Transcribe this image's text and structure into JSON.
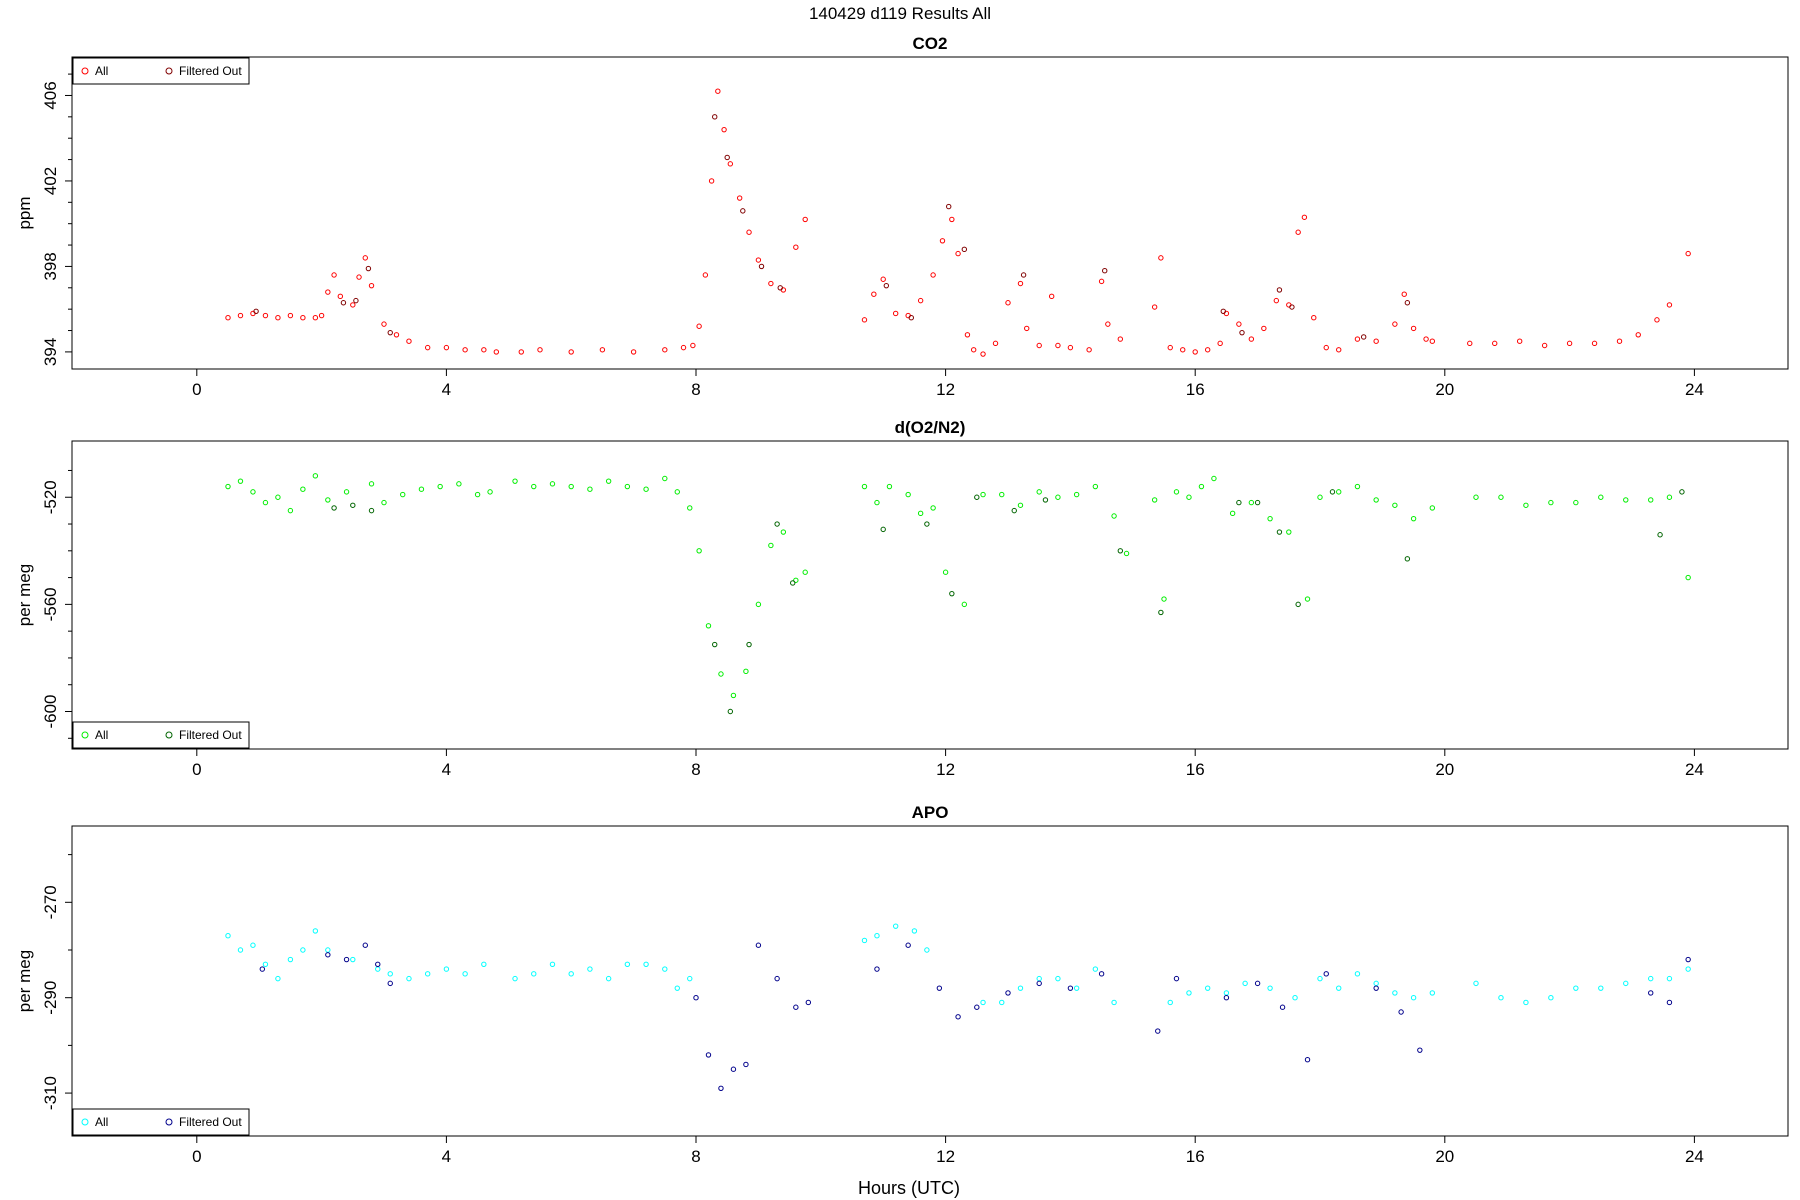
{
  "figure": {
    "title": "140429   d119   Results All",
    "xlabel": "Hours (UTC)"
  },
  "chart_data": [
    {
      "type": "scatter",
      "title": "CO2",
      "ylabel": "ppm",
      "xlim": [
        -2.0,
        25.5
      ],
      "ylim": [
        393.2,
        407.8
      ],
      "xticks": [
        0,
        4,
        8,
        12,
        16,
        20,
        24
      ],
      "yticks": [
        394,
        398,
        402,
        406
      ],
      "yminor": [
        395,
        396,
        397,
        399,
        400,
        401,
        403,
        404,
        405,
        407
      ],
      "legend": {
        "placement": "top-left",
        "entries": [
          "All",
          "Filtered Out"
        ]
      },
      "series": [
        {
          "name": "All",
          "color": "#ff0000",
          "x": [
            0.5,
            0.7,
            0.9,
            1.1,
            1.3,
            1.5,
            1.7,
            1.9,
            2.0,
            2.1,
            2.2,
            2.3,
            2.5,
            2.6,
            2.7,
            2.8,
            3.0,
            3.2,
            3.4,
            3.7,
            4.0,
            4.3,
            4.6,
            4.8,
            5.2,
            5.5,
            6.0,
            6.5,
            7.0,
            7.5,
            7.8,
            7.95,
            8.05,
            8.15,
            8.25,
            8.35,
            8.45,
            8.55,
            8.7,
            8.85,
            9.0,
            9.2,
            9.4,
            9.6,
            9.75,
            10.7,
            10.85,
            11.0,
            11.2,
            11.4,
            11.6,
            11.8,
            11.95,
            12.1,
            12.2,
            12.35,
            12.45,
            12.6,
            12.8,
            13.0,
            13.2,
            13.3,
            13.5,
            13.7,
            13.8,
            14.0,
            14.3,
            14.5,
            14.6,
            14.8,
            15.35,
            15.45,
            15.6,
            15.8,
            16.0,
            16.2,
            16.4,
            16.5,
            16.7,
            16.9,
            17.1,
            17.3,
            17.5,
            17.65,
            17.75,
            17.9,
            18.1,
            18.3,
            18.6,
            18.9,
            19.2,
            19.35,
            19.5,
            19.7,
            19.8,
            20.4,
            20.8,
            21.2,
            21.6,
            22.0,
            22.4,
            22.8,
            23.1,
            23.4,
            23.6,
            23.9
          ],
          "y": [
            395.6,
            395.7,
            395.8,
            395.7,
            395.6,
            395.7,
            395.6,
            395.6,
            395.7,
            396.8,
            397.6,
            396.6,
            396.2,
            397.5,
            398.4,
            397.1,
            395.3,
            394.8,
            394.5,
            394.2,
            394.2,
            394.1,
            394.1,
            394.0,
            394.0,
            394.1,
            394.0,
            394.1,
            394.0,
            394.1,
            394.2,
            394.3,
            395.2,
            397.6,
            402.0,
            406.2,
            404.4,
            402.8,
            401.2,
            399.6,
            398.3,
            397.2,
            396.9,
            398.9,
            400.2,
            395.5,
            396.7,
            397.4,
            395.8,
            395.7,
            396.4,
            397.6,
            399.2,
            400.2,
            398.6,
            394.8,
            394.1,
            393.9,
            394.4,
            396.3,
            397.2,
            395.1,
            394.3,
            396.6,
            394.3,
            394.2,
            394.1,
            397.3,
            395.3,
            394.6,
            396.1,
            398.4,
            394.2,
            394.1,
            394.0,
            394.1,
            394.4,
            395.8,
            395.3,
            394.6,
            395.1,
            396.4,
            396.2,
            399.6,
            400.3,
            395.6,
            394.2,
            394.1,
            394.6,
            394.5,
            395.3,
            396.7,
            395.1,
            394.6,
            394.5,
            394.4,
            394.4,
            394.5,
            394.3,
            394.4,
            394.4,
            394.5,
            394.8,
            395.5,
            396.2,
            398.6
          ]
        },
        {
          "name": "Filtered Out",
          "color": "#800000",
          "x": [
            0.95,
            2.35,
            2.55,
            2.75,
            3.1,
            8.3,
            8.5,
            8.75,
            9.05,
            9.35,
            11.05,
            11.45,
            12.05,
            12.3,
            13.25,
            14.55,
            16.45,
            16.75,
            17.35,
            17.55,
            18.7,
            19.4
          ],
          "y": [
            395.9,
            396.3,
            396.4,
            397.9,
            394.9,
            405.0,
            403.1,
            400.6,
            398.0,
            397.0,
            397.1,
            395.6,
            400.8,
            398.8,
            397.6,
            397.8,
            395.9,
            394.9,
            396.9,
            396.1,
            394.7,
            396.3
          ]
        }
      ]
    },
    {
      "type": "scatter",
      "title": "d(O2/N2)",
      "ylabel": "per meg",
      "xlim": [
        -2.0,
        25.5
      ],
      "ylim": [
        -614,
        -499
      ],
      "xticks": [
        0,
        4,
        8,
        12,
        16,
        20,
        24
      ],
      "yticks": [
        -520,
        -560,
        -600
      ],
      "yminor": [
        -510,
        -530,
        -540,
        -550,
        -570,
        -580,
        -590,
        -610
      ],
      "legend": {
        "placement": "bottom-left",
        "entries": [
          "All",
          "Filtered Out"
        ]
      },
      "series": [
        {
          "name": "All",
          "color": "#00ee00",
          "x": [
            0.5,
            0.7,
            0.9,
            1.1,
            1.3,
            1.5,
            1.7,
            1.9,
            2.1,
            2.4,
            2.8,
            3.0,
            3.3,
            3.6,
            3.9,
            4.2,
            4.5,
            4.7,
            5.1,
            5.4,
            5.7,
            6.0,
            6.3,
            6.6,
            6.9,
            7.2,
            7.5,
            7.7,
            7.9,
            8.05,
            8.2,
            8.4,
            8.6,
            8.8,
            9.0,
            9.2,
            9.4,
            9.6,
            9.75,
            10.7,
            10.9,
            11.1,
            11.4,
            11.6,
            11.8,
            12.0,
            12.3,
            12.6,
            12.9,
            13.2,
            13.5,
            13.8,
            14.1,
            14.4,
            14.7,
            14.9,
            15.35,
            15.5,
            15.7,
            15.9,
            16.1,
            16.3,
            16.6,
            16.9,
            17.2,
            17.5,
            17.8,
            18.0,
            18.3,
            18.6,
            18.9,
            19.2,
            19.5,
            19.8,
            20.5,
            20.9,
            21.3,
            21.7,
            22.1,
            22.5,
            22.9,
            23.3,
            23.6,
            23.9
          ],
          "y": [
            -516,
            -514,
            -518,
            -522,
            -520,
            -525,
            -517,
            -512,
            -521,
            -518,
            -515,
            -522,
            -519,
            -517,
            -516,
            -515,
            -519,
            -518,
            -514,
            -516,
            -515,
            -516,
            -517,
            -514,
            -516,
            -517,
            -513,
            -518,
            -524,
            -540,
            -568,
            -586,
            -594,
            -585,
            -560,
            -538,
            -533,
            -551,
            -548,
            -516,
            -522,
            -516,
            -519,
            -526,
            -524,
            -548,
            -560,
            -519,
            -519,
            -523,
            -518,
            -520,
            -519,
            -516,
            -527,
            -541,
            -521,
            -558,
            -518,
            -520,
            -516,
            -513,
            -526,
            -522,
            -528,
            -533,
            -558,
            -520,
            -518,
            -516,
            -521,
            -523,
            -528,
            -524,
            -520,
            -520,
            -523,
            -522,
            -522,
            -520,
            -521,
            -521,
            -520,
            -550
          ]
        },
        {
          "name": "Filtered Out",
          "color": "#006400",
          "x": [
            2.2,
            2.5,
            2.8,
            8.3,
            8.55,
            8.85,
            9.3,
            9.55,
            11.0,
            11.7,
            12.1,
            12.5,
            13.1,
            13.6,
            14.8,
            15.45,
            16.7,
            17.0,
            17.35,
            17.65,
            18.2,
            19.4,
            23.45,
            23.8
          ],
          "y": [
            -524,
            -523,
            -525,
            -575,
            -600,
            -575,
            -530,
            -552,
            -532,
            -530,
            -556,
            -520,
            -525,
            -521,
            -540,
            -563,
            -522,
            -522,
            -533,
            -560,
            -518,
            -543,
            -534,
            -518
          ]
        }
      ]
    },
    {
      "type": "scatter",
      "title": "APO",
      "ylabel": "per meg",
      "xlabel": "Hours (UTC)",
      "xlim": [
        -2.0,
        25.5
      ],
      "ylim": [
        -319,
        -254
      ],
      "xticks": [
        0,
        4,
        8,
        12,
        16,
        20,
        24
      ],
      "yticks": [
        -270,
        -290,
        -310
      ],
      "yminor": [
        -260,
        -280,
        -300
      ],
      "legend": {
        "placement": "bottom-left",
        "entries": [
          "All",
          "Filtered Out"
        ]
      },
      "series": [
        {
          "name": "All",
          "color": "#00ffff",
          "x": [
            0.5,
            0.7,
            0.9,
            1.1,
            1.3,
            1.5,
            1.7,
            1.9,
            2.1,
            2.5,
            2.9,
            3.1,
            3.4,
            3.7,
            4.0,
            4.3,
            4.6,
            5.1,
            5.4,
            5.7,
            6.0,
            6.3,
            6.6,
            6.9,
            7.2,
            7.5,
            7.7,
            7.9,
            10.7,
            10.9,
            11.2,
            11.5,
            11.7,
            12.6,
            12.9,
            13.2,
            13.5,
            13.8,
            14.1,
            14.4,
            14.7,
            15.6,
            15.9,
            16.2,
            16.5,
            16.8,
            17.2,
            17.6,
            18.0,
            18.3,
            18.6,
            18.9,
            19.2,
            19.5,
            19.8,
            20.5,
            20.9,
            21.3,
            21.7,
            22.1,
            22.5,
            22.9,
            23.3,
            23.6,
            23.9
          ],
          "y": [
            -277,
            -280,
            -279,
            -283,
            -286,
            -282,
            -280,
            -276,
            -280,
            -282,
            -284,
            -285,
            -286,
            -285,
            -284,
            -285,
            -283,
            -286,
            -285,
            -283,
            -285,
            -284,
            -286,
            -283,
            -283,
            -284,
            -288,
            -286,
            -278,
            -277,
            -275,
            -276,
            -280,
            -291,
            -291,
            -288,
            -286,
            -286,
            -288,
            -284,
            -291,
            -291,
            -289,
            -288,
            -289,
            -287,
            -288,
            -290,
            -286,
            -288,
            -285,
            -287,
            -289,
            -290,
            -289,
            -287,
            -290,
            -291,
            -290,
            -288,
            -288,
            -287,
            -286,
            -286,
            -284
          ]
        },
        {
          "name": "Filtered Out",
          "color": "#00008b",
          "x": [
            1.05,
            2.1,
            2.4,
            2.7,
            2.9,
            3.1,
            8.0,
            8.2,
            8.4,
            8.6,
            8.8,
            9.0,
            9.3,
            9.6,
            9.8,
            10.9,
            11.4,
            11.9,
            12.2,
            12.5,
            13.0,
            13.5,
            14.0,
            14.5,
            15.4,
            15.7,
            16.5,
            17.0,
            17.4,
            17.8,
            18.1,
            18.9,
            19.3,
            19.6,
            23.3,
            23.6,
            23.9
          ],
          "y": [
            -284,
            -281,
            -282,
            -279,
            -283,
            -287,
            -290,
            -302,
            -309,
            -305,
            -304,
            -279,
            -286,
            -292,
            -291,
            -284,
            -279,
            -288,
            -294,
            -292,
            -289,
            -287,
            -288,
            -285,
            -297,
            -286,
            -290,
            -287,
            -292,
            -303,
            -285,
            -288,
            -293,
            -301,
            -289,
            -291,
            -282
          ]
        }
      ]
    }
  ]
}
